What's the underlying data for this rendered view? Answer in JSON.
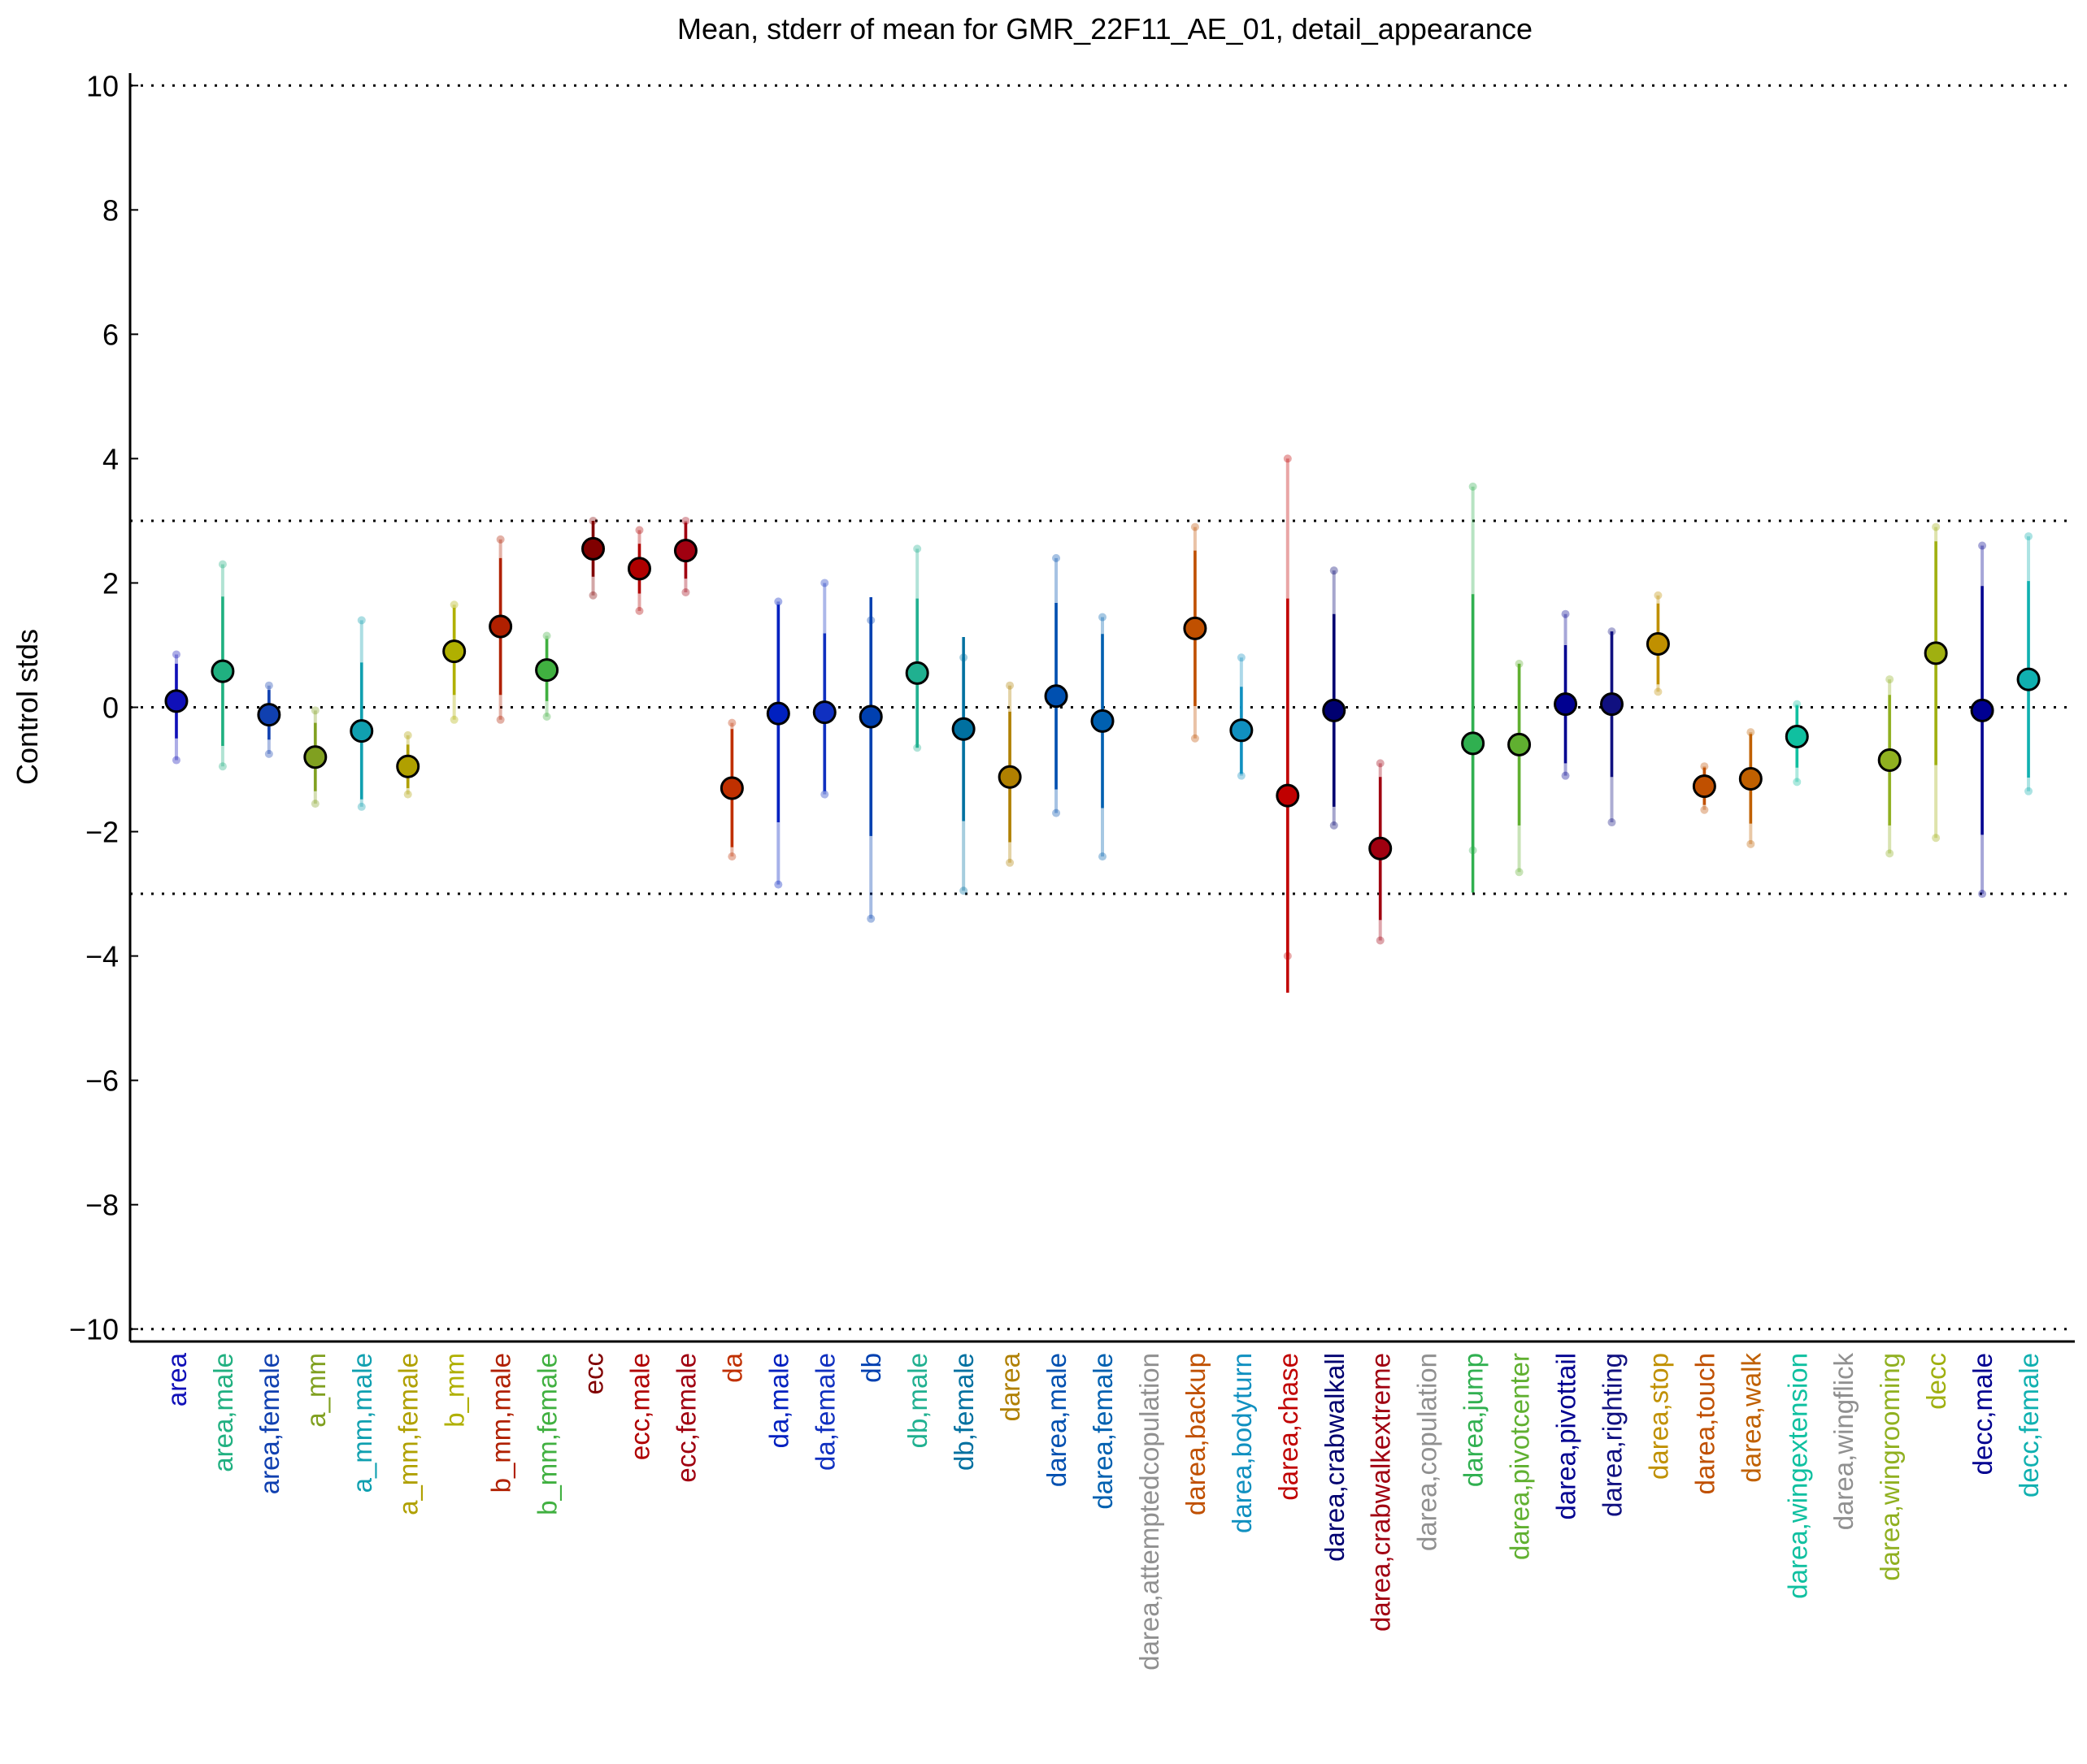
{
  "chart_data": {
    "type": "errorbar",
    "title": "Mean, stderr of mean for GMR_22F11_AE_01, detail_appearance",
    "y_label": "Control stds",
    "categories": [
      "area",
      "area,male",
      "area,female",
      "a_mm",
      "a_mm,male",
      "a_mm,female",
      "b_mm",
      "b_mm,male",
      "b_mm,female",
      "ecc",
      "ecc,male",
      "ecc,female",
      "da",
      "da,male",
      "da,female",
      "db",
      "db,male",
      "db,female",
      "darea",
      "darea,male",
      "darea,female",
      "darea,attemptedcopulation",
      "darea,backup",
      "darea,bodyturn",
      "darea,chase",
      "darea,crabwalkall",
      "darea,crabwalkextreme",
      "darea,copulation",
      "darea,jump",
      "darea,pivotcenter",
      "darea,pivottail",
      "darea,righting",
      "darea,stop",
      "darea,touch",
      "darea,walk",
      "darea,wingextension",
      "darea,wingflick",
      "darea,wingrooming",
      "decc",
      "decc,male",
      "decc,female"
    ],
    "values": [
      0.1,
      0.58,
      -0.12,
      -0.8,
      -0.38,
      -0.95,
      0.9,
      1.3,
      0.6,
      2.55,
      2.23,
      2.52,
      -1.3,
      -0.1,
      -0.08,
      -0.15,
      0.55,
      -0.35,
      -1.12,
      0.18,
      -0.22,
      null,
      1.27,
      -0.37,
      -1.42,
      -0.05,
      -2.27,
      null,
      -0.58,
      -0.6,
      0.05,
      0.05,
      1.02,
      -1.27,
      -1.15,
      -0.47,
      null,
      -0.85,
      0.87,
      -0.05,
      0.45
    ],
    "errors": [
      0.6,
      1.2,
      0.4,
      0.55,
      1.1,
      0.35,
      0.7,
      1.1,
      0.5,
      0.45,
      0.4,
      0.45,
      0.95,
      1.75,
      1.27,
      1.92,
      1.2,
      1.48,
      1.05,
      1.5,
      1.4,
      null,
      1.25,
      0.7,
      3.17,
      1.55,
      1.15,
      null,
      2.4,
      1.3,
      0.95,
      1.17,
      0.65,
      0.3,
      0.72,
      0.5,
      null,
      1.05,
      1.8,
      2.0,
      1.58
    ],
    "ranges": [
      [
        -0.85,
        0.85
      ],
      [
        -0.95,
        2.3
      ],
      [
        -0.75,
        0.35
      ],
      [
        -1.55,
        -0.05
      ],
      [
        -1.6,
        1.4
      ],
      [
        -1.4,
        -0.45
      ],
      [
        -0.2,
        1.65
      ],
      [
        -0.2,
        2.7
      ],
      [
        -0.15,
        1.15
      ],
      [
        1.8,
        3.0
      ],
      [
        1.55,
        2.85
      ],
      [
        1.85,
        3.0
      ],
      [
        -2.4,
        -0.25
      ],
      [
        -2.85,
        1.7
      ],
      [
        -1.4,
        2.0
      ],
      [
        -3.4,
        1.4
      ],
      [
        -0.65,
        2.55
      ],
      [
        -2.95,
        0.8
      ],
      [
        -2.5,
        0.35
      ],
      [
        -1.7,
        2.4
      ],
      [
        -2.4,
        1.45
      ],
      null,
      [
        -0.5,
        2.9
      ],
      [
        -1.1,
        0.8
      ],
      [
        -4.0,
        4.0
      ],
      [
        -1.9,
        2.2
      ],
      [
        -3.75,
        -0.9
      ],
      null,
      [
        -2.3,
        3.55
      ],
      [
        -2.65,
        0.7
      ],
      [
        -1.1,
        1.5
      ],
      [
        -1.85,
        1.22
      ],
      [
        0.25,
        1.8
      ],
      [
        -1.65,
        -0.95
      ],
      [
        -2.2,
        -0.4
      ],
      [
        -1.2,
        0.05
      ],
      null,
      [
        -2.35,
        0.45
      ],
      [
        -2.1,
        2.9
      ],
      [
        -3.0,
        2.6
      ],
      [
        -1.35,
        2.75
      ]
    ],
    "colors": [
      "#1010b8",
      "#20b080",
      "#1040b0",
      "#80a020",
      "#10a0b0",
      "#b0a000",
      "#b0b000",
      "#b02000",
      "#40b040",
      "#800000",
      "#b00000",
      "#a00010",
      "#c03000",
      "#0020c0",
      "#1030c0",
      "#0040b0",
      "#20b090",
      "#0070a0",
      "#b08000",
      "#0050b0",
      "#0060b0",
      "#909090",
      "#c05000",
      "#1090c0",
      "#c00000",
      "#000070",
      "#a00010",
      "#909090",
      "#30b050",
      "#60b030",
      "#000090",
      "#101080",
      "#c09000",
      "#c05000",
      "#c06000",
      "#10c0a0",
      "#909090",
      "#90b020",
      "#a0b010",
      "#000090",
      "#10b0b0"
    ],
    "ylim": [
      -10.2,
      10.2
    ],
    "yticks": [
      {
        "value": -10,
        "label": "−10"
      },
      {
        "value": -8,
        "label": "−8"
      },
      {
        "value": -6,
        "label": "−6"
      },
      {
        "value": -4,
        "label": "−4"
      },
      {
        "value": -2,
        "label": "−2"
      },
      0,
      2,
      4,
      6,
      8,
      10
    ],
    "hlines": [
      10,
      3,
      0,
      -3,
      -10
    ]
  }
}
